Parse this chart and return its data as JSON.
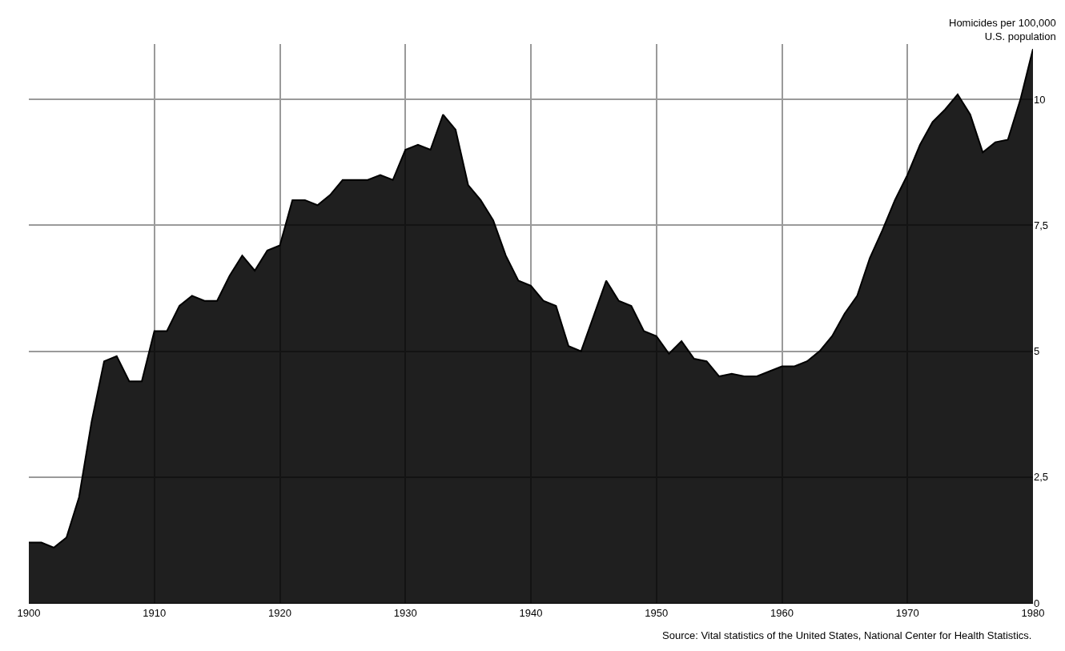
{
  "chart_data": {
    "type": "area",
    "ylabel": "Homicides per 100,000\nU.S. population",
    "annotations": [
      "Source: Vital statistics of the United States, National Center for Health Statistics."
    ],
    "x": [
      1900,
      1901,
      1902,
      1903,
      1904,
      1905,
      1906,
      1907,
      1908,
      1909,
      1910,
      1911,
      1912,
      1913,
      1914,
      1915,
      1916,
      1917,
      1918,
      1919,
      1920,
      1921,
      1922,
      1923,
      1924,
      1925,
      1926,
      1927,
      1928,
      1929,
      1930,
      1931,
      1932,
      1933,
      1934,
      1935,
      1936,
      1937,
      1938,
      1939,
      1940,
      1941,
      1942,
      1943,
      1944,
      1945,
      1946,
      1947,
      1948,
      1949,
      1950,
      1951,
      1952,
      1953,
      1954,
      1955,
      1956,
      1957,
      1958,
      1959,
      1960,
      1961,
      1962,
      1963,
      1964,
      1965,
      1966,
      1967,
      1968,
      1969,
      1970,
      1971,
      1972,
      1973,
      1974,
      1975,
      1976,
      1977,
      1978,
      1979,
      1980
    ],
    "series": [
      {
        "color": "#000000",
        "values": [
          1.2,
          1.2,
          1.1,
          1.3,
          2.1,
          3.6,
          4.8,
          4.9,
          4.4,
          4.4,
          5.4,
          5.4,
          5.9,
          6.1,
          6.0,
          6.0,
          6.5,
          6.9,
          6.6,
          7.0,
          7.1,
          8.0,
          8.0,
          7.9,
          8.1,
          8.4,
          8.4,
          8.4,
          8.5,
          8.4,
          9.0,
          9.1,
          9.0,
          9.7,
          9.4,
          8.3,
          8.0,
          7.6,
          6.9,
          6.4,
          6.3,
          6.0,
          5.9,
          5.1,
          5.0,
          5.7,
          6.4,
          6.0,
          5.9,
          5.4,
          5.3,
          4.95,
          5.2,
          4.85,
          4.8,
          4.5,
          4.55,
          4.5,
          4.5,
          4.6,
          4.7,
          4.7,
          4.8,
          5.0,
          5.3,
          5.75,
          6.1,
          6.85,
          7.4,
          8.0,
          8.5,
          9.1,
          9.55,
          9.8,
          10.1,
          9.7,
          8.95,
          9.15,
          9.2,
          10.0,
          11.0
        ]
      }
    ],
    "xlim": [
      1900,
      1980
    ],
    "xticks": [
      1900,
      1910,
      1920,
      1930,
      1940,
      1950,
      1960,
      1970,
      1980
    ],
    "ylim": [
      0,
      11.1
    ],
    "yticks": [
      0,
      {
        "value": 2.5,
        "label": "2,5"
      },
      5,
      {
        "value": 7.5,
        "label": "7,5"
      },
      10
    ],
    "grid": true
  }
}
